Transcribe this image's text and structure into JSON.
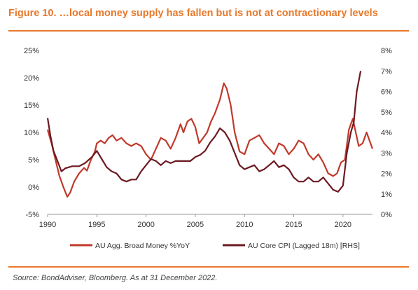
{
  "figure": {
    "title": "Figure 10. …local money supply has fallen but is not at contractionary levels",
    "source": "Source: BondAdviser, Bloomberg. As at 31 December 2022."
  },
  "colors": {
    "accent": "#e8782a",
    "broad_money": "#c0392b",
    "core_cpi": "#6b1a22",
    "axis_text": "#333333"
  },
  "chart_data": {
    "type": "line",
    "title": "",
    "xlabel": "",
    "ylabel": "",
    "xlim": [
      1990,
      2023
    ],
    "x_ticks": [
      1990,
      1995,
      2000,
      2005,
      2010,
      2015,
      2020
    ],
    "x_tick_labels": [
      "1990",
      "1995",
      "2000",
      "2005",
      "2010",
      "2015",
      "2020"
    ],
    "ylim": [
      -5,
      25
    ],
    "y_ticks": [
      -5,
      0,
      5,
      10,
      15,
      20,
      25
    ],
    "y_tick_labels": [
      "-5%",
      "0%",
      "5%",
      "10%",
      "15%",
      "20%",
      "25%"
    ],
    "y2lim": [
      0,
      8
    ],
    "y2_ticks": [
      0,
      1,
      2,
      3,
      4,
      5,
      6,
      7,
      8
    ],
    "y2_tick_labels": [
      "0%",
      "1%",
      "2%",
      "3%",
      "4%",
      "5%",
      "6%",
      "7%",
      "8%"
    ],
    "legend_position": "bottom",
    "grid": false,
    "series": [
      {
        "name": "AU Agg. Broad Money %YoY",
        "axis": "left",
        "points": [
          [
            1990.0,
            10.5
          ],
          [
            1990.4,
            8.0
          ],
          [
            1990.8,
            5.0
          ],
          [
            1991.2,
            2.0
          ],
          [
            1991.6,
            0.0
          ],
          [
            1992.0,
            -1.8
          ],
          [
            1992.3,
            -1.0
          ],
          [
            1992.7,
            1.0
          ],
          [
            1993.2,
            2.5
          ],
          [
            1993.7,
            3.5
          ],
          [
            1994.0,
            3.0
          ],
          [
            1994.4,
            5.0
          ],
          [
            1994.8,
            6.5
          ],
          [
            1995.0,
            8.0
          ],
          [
            1995.4,
            8.5
          ],
          [
            1995.8,
            8.0
          ],
          [
            1996.2,
            9.0
          ],
          [
            1996.6,
            9.5
          ],
          [
            1997.0,
            8.5
          ],
          [
            1997.5,
            9.0
          ],
          [
            1998.0,
            8.0
          ],
          [
            1998.5,
            7.5
          ],
          [
            1999.0,
            8.0
          ],
          [
            1999.5,
            7.5
          ],
          [
            2000.0,
            6.0
          ],
          [
            2000.5,
            5.0
          ],
          [
            2001.0,
            7.0
          ],
          [
            2001.5,
            9.0
          ],
          [
            2002.0,
            8.5
          ],
          [
            2002.5,
            7.0
          ],
          [
            2003.0,
            9.0
          ],
          [
            2003.5,
            11.5
          ],
          [
            2003.8,
            10.0
          ],
          [
            2004.2,
            12.0
          ],
          [
            2004.6,
            12.5
          ],
          [
            2005.0,
            11.0
          ],
          [
            2005.4,
            8.0
          ],
          [
            2005.8,
            9.0
          ],
          [
            2006.2,
            10.0
          ],
          [
            2006.6,
            12.0
          ],
          [
            2007.0,
            13.5
          ],
          [
            2007.5,
            16.0
          ],
          [
            2007.9,
            19.0
          ],
          [
            2008.2,
            18.0
          ],
          [
            2008.6,
            15.0
          ],
          [
            2009.0,
            10.0
          ],
          [
            2009.5,
            6.5
          ],
          [
            2010.0,
            6.0
          ],
          [
            2010.5,
            8.5
          ],
          [
            2011.0,
            9.0
          ],
          [
            2011.5,
            9.5
          ],
          [
            2012.0,
            8.0
          ],
          [
            2012.5,
            7.0
          ],
          [
            2013.0,
            6.0
          ],
          [
            2013.5,
            8.0
          ],
          [
            2014.0,
            7.5
          ],
          [
            2014.5,
            6.0
          ],
          [
            2015.0,
            7.0
          ],
          [
            2015.5,
            8.5
          ],
          [
            2016.0,
            8.0
          ],
          [
            2016.5,
            6.0
          ],
          [
            2017.0,
            5.0
          ],
          [
            2017.5,
            6.0
          ],
          [
            2018.0,
            4.5
          ],
          [
            2018.5,
            2.5
          ],
          [
            2019.0,
            2.0
          ],
          [
            2019.4,
            2.5
          ],
          [
            2019.8,
            4.5
          ],
          [
            2020.2,
            5.0
          ],
          [
            2020.6,
            10.5
          ],
          [
            2021.0,
            12.5
          ],
          [
            2021.3,
            10.0
          ],
          [
            2021.6,
            7.5
          ],
          [
            2022.0,
            8.0
          ],
          [
            2022.4,
            10.0
          ],
          [
            2022.7,
            8.5
          ],
          [
            2023.0,
            7.0
          ]
        ]
      },
      {
        "name": "AU Core CPI (Lagged 18m) [RHS]",
        "axis": "right",
        "points": [
          [
            1990.0,
            4.7
          ],
          [
            1990.3,
            3.8
          ],
          [
            1990.6,
            3.1
          ],
          [
            1991.0,
            2.6
          ],
          [
            1991.4,
            2.1
          ],
          [
            1991.8,
            2.25
          ],
          [
            1992.5,
            2.35
          ],
          [
            1993.2,
            2.35
          ],
          [
            1993.8,
            2.5
          ],
          [
            1994.5,
            2.8
          ],
          [
            1995.0,
            3.1
          ],
          [
            1995.5,
            2.7
          ],
          [
            1996.0,
            2.3
          ],
          [
            1996.5,
            2.1
          ],
          [
            1997.0,
            2.0
          ],
          [
            1997.5,
            1.7
          ],
          [
            1998.0,
            1.6
          ],
          [
            1998.5,
            1.7
          ],
          [
            1999.0,
            1.7
          ],
          [
            1999.5,
            2.1
          ],
          [
            2000.0,
            2.4
          ],
          [
            2000.5,
            2.7
          ],
          [
            2001.0,
            2.6
          ],
          [
            2001.5,
            2.4
          ],
          [
            2002.0,
            2.6
          ],
          [
            2002.5,
            2.5
          ],
          [
            2003.0,
            2.6
          ],
          [
            2003.5,
            2.6
          ],
          [
            2004.0,
            2.6
          ],
          [
            2004.5,
            2.6
          ],
          [
            2005.0,
            2.8
          ],
          [
            2005.5,
            2.9
          ],
          [
            2006.0,
            3.1
          ],
          [
            2006.5,
            3.5
          ],
          [
            2007.0,
            3.8
          ],
          [
            2007.5,
            4.2
          ],
          [
            2008.0,
            4.0
          ],
          [
            2008.5,
            3.6
          ],
          [
            2009.0,
            3.0
          ],
          [
            2009.5,
            2.4
          ],
          [
            2010.0,
            2.2
          ],
          [
            2010.5,
            2.3
          ],
          [
            2011.0,
            2.4
          ],
          [
            2011.5,
            2.1
          ],
          [
            2012.0,
            2.2
          ],
          [
            2012.5,
            2.4
          ],
          [
            2013.0,
            2.6
          ],
          [
            2013.5,
            2.3
          ],
          [
            2014.0,
            2.4
          ],
          [
            2014.5,
            2.2
          ],
          [
            2015.0,
            1.8
          ],
          [
            2015.5,
            1.6
          ],
          [
            2016.0,
            1.6
          ],
          [
            2016.5,
            1.8
          ],
          [
            2017.0,
            1.6
          ],
          [
            2017.5,
            1.6
          ],
          [
            2018.0,
            1.8
          ],
          [
            2018.5,
            1.5
          ],
          [
            2019.0,
            1.2
          ],
          [
            2019.5,
            1.1
          ],
          [
            2020.0,
            1.4
          ],
          [
            2020.4,
            3.0
          ],
          [
            2020.8,
            4.0
          ],
          [
            2021.1,
            4.5
          ],
          [
            2021.4,
            6.0
          ],
          [
            2021.6,
            6.5
          ],
          [
            2021.8,
            7.0
          ]
        ]
      }
    ]
  }
}
